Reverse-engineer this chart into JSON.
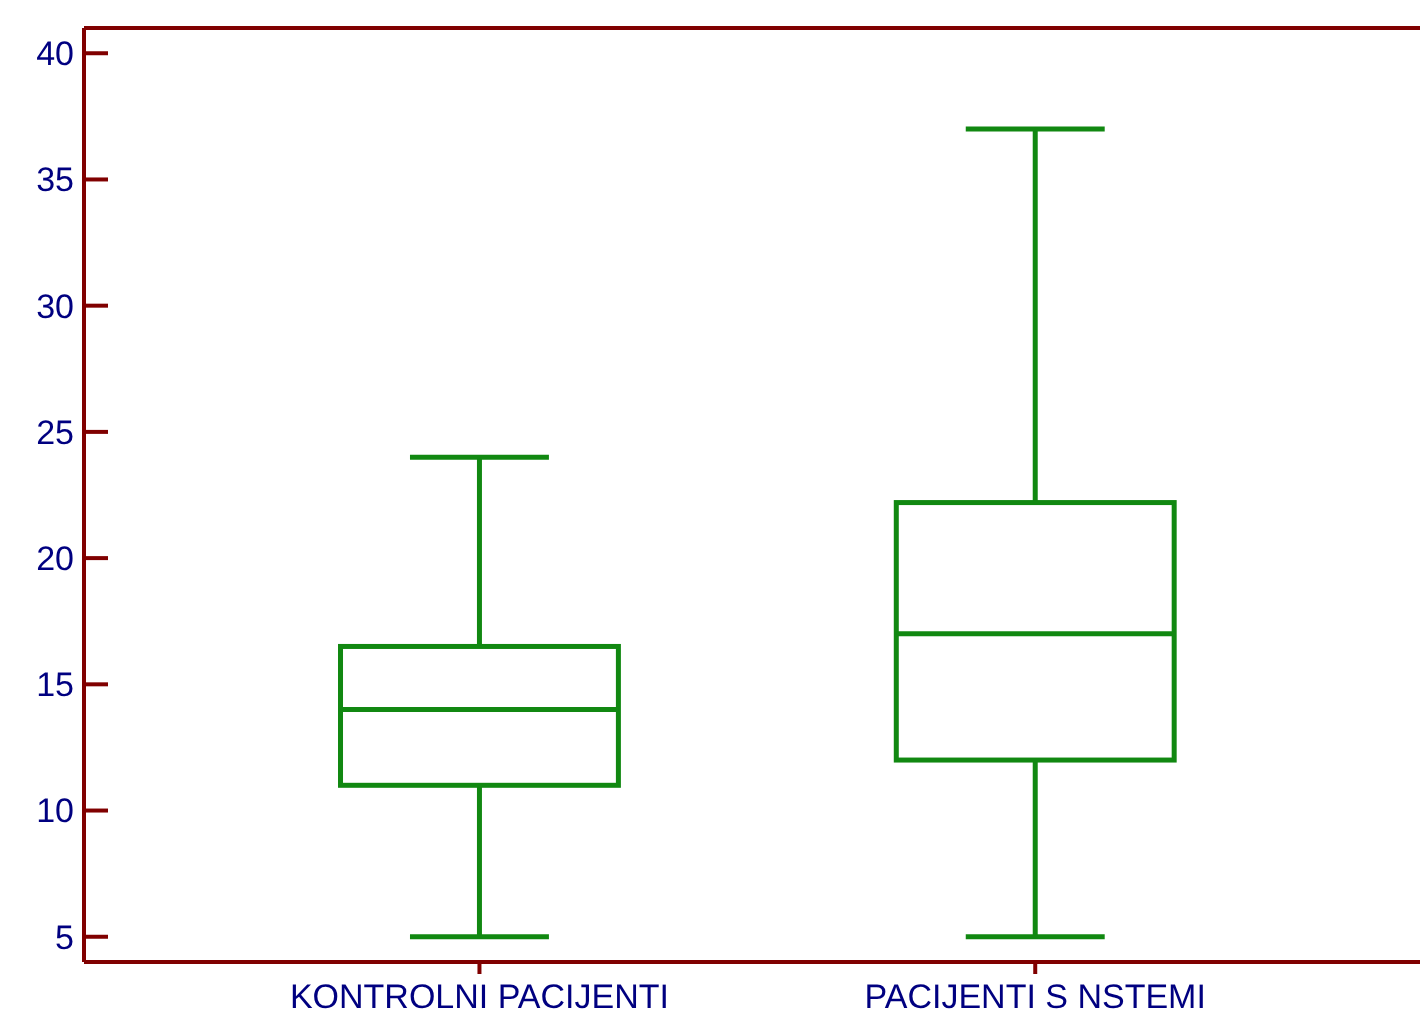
{
  "chart_data": {
    "type": "box",
    "categories": [
      "KONTROLNI PACIJENTI",
      "PACIJENTI S NSTEMI"
    ],
    "color": "#118811",
    "boxes": [
      {
        "low": 5,
        "q1": 11,
        "median": 14,
        "q3": 16.5,
        "high": 24
      },
      {
        "low": 5,
        "q1": 12,
        "median": 17,
        "q3": 22.2,
        "high": 37
      }
    ],
    "ylim": [
      4,
      41
    ],
    "yticks": [
      5,
      10,
      15,
      20,
      25,
      30,
      35,
      40
    ],
    "grid": false
  }
}
